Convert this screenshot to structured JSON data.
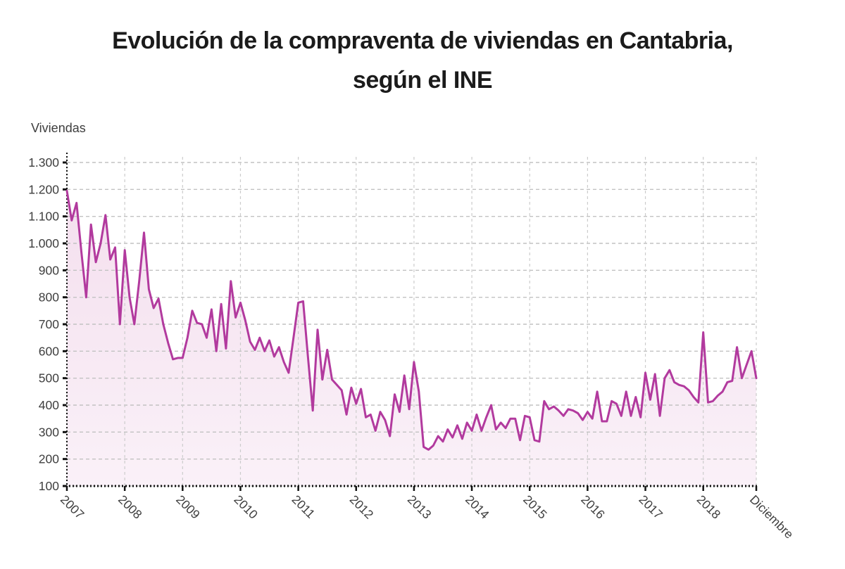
{
  "title": {
    "line1": "Evolución de la compraventa de viviendas en Cantabria,",
    "line2": "según el INE"
  },
  "y_axis": {
    "label": "Viviendas",
    "tick_labels": [
      "1.300",
      "1.200",
      "1.100",
      "1.000",
      "900",
      "800",
      "700",
      "600",
      "500",
      "400",
      "300",
      "200",
      "100"
    ],
    "tick_values": [
      1300,
      1200,
      1100,
      1000,
      900,
      800,
      700,
      600,
      500,
      400,
      300,
      200,
      100
    ]
  },
  "x_axis": {
    "tick_labels": [
      "2007",
      "2008",
      "2009",
      "2010",
      "2011",
      "2012",
      "2013",
      "2014",
      "2015",
      "2016",
      "2017",
      "2018",
      "Diciembre"
    ],
    "tick_month_indices": [
      0,
      12,
      24,
      36,
      48,
      60,
      72,
      84,
      96,
      108,
      120,
      132,
      143
    ]
  },
  "chart_data": {
    "type": "area",
    "title": "Evolución de la compraventa de viviendas en Cantabria, según el INE",
    "ylabel": "Viviendas",
    "ylim": [
      100,
      1300
    ],
    "frequency": "monthly",
    "x_start": "2007",
    "x_end": "Diciembre 2018",
    "points": 144,
    "grid": true,
    "legend": false,
    "line_color": "#b23a9e",
    "fill_color_top": "#f4dfee",
    "fill_color_bottom": "#faf1f8",
    "grid_color": "#c2c2c2",
    "axis_color": "#111111",
    "values": [
      1195,
      1085,
      1150,
      970,
      800,
      1070,
      930,
      1000,
      1105,
      940,
      985,
      700,
      975,
      800,
      700,
      860,
      1040,
      830,
      760,
      795,
      700,
      630,
      570,
      575,
      575,
      650,
      750,
      705,
      700,
      650,
      755,
      600,
      775,
      610,
      860,
      725,
      780,
      715,
      635,
      605,
      650,
      600,
      640,
      580,
      615,
      560,
      520,
      650,
      780,
      785,
      580,
      380,
      680,
      495,
      605,
      495,
      475,
      455,
      365,
      465,
      405,
      460,
      355,
      365,
      305,
      375,
      345,
      285,
      440,
      375,
      510,
      385,
      560,
      450,
      245,
      235,
      250,
      285,
      265,
      310,
      280,
      325,
      275,
      335,
      305,
      365,
      305,
      355,
      400,
      310,
      335,
      315,
      350,
      350,
      270,
      360,
      355,
      270,
      265,
      415,
      385,
      395,
      380,
      360,
      385,
      380,
      370,
      345,
      375,
      350,
      450,
      340,
      340,
      415,
      405,
      360,
      450,
      360,
      430,
      355,
      520,
      420,
      515,
      360,
      500,
      530,
      485,
      475,
      470,
      455,
      430,
      410,
      670,
      410,
      415,
      435,
      450,
      485,
      490,
      615,
      500,
      550,
      600,
      500
    ]
  }
}
